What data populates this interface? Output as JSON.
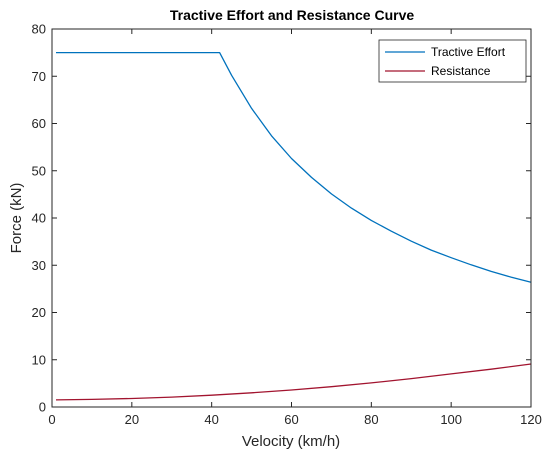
{
  "chart_data": {
    "type": "line",
    "title": "Tractive Effort and Resistance Curve",
    "xlabel": "Velocity (km/h)",
    "ylabel": "Force (kN)",
    "xlim": [
      0,
      120
    ],
    "ylim": [
      0,
      80
    ],
    "xticks": [
      0,
      20,
      40,
      60,
      80,
      100,
      120
    ],
    "yticks": [
      0,
      10,
      20,
      30,
      40,
      50,
      60,
      70,
      80
    ],
    "grid": false,
    "legend_position": "top-right",
    "series": [
      {
        "name": "Tractive Effort",
        "color": "#0072BD",
        "x": [
          1,
          10,
          20,
          30,
          40,
          42,
          45,
          50,
          55,
          60,
          65,
          70,
          75,
          80,
          85,
          90,
          95,
          100,
          105,
          110,
          115,
          120
        ],
        "y": [
          75,
          75,
          75,
          75,
          75,
          75,
          70.2,
          63.2,
          57.4,
          52.6,
          48.6,
          45.1,
          42.1,
          39.5,
          37.2,
          35.1,
          33.2,
          31.6,
          30.1,
          28.7,
          27.5,
          26.4
        ]
      },
      {
        "name": "Resistance",
        "color": "#A2142F",
        "x": [
          1,
          10,
          20,
          30,
          40,
          50,
          60,
          70,
          80,
          90,
          100,
          110,
          120
        ],
        "y": [
          1.5,
          1.6,
          1.8,
          2.1,
          2.5,
          3.0,
          3.6,
          4.3,
          5.1,
          6.0,
          7.0,
          8.0,
          9.1
        ]
      }
    ]
  }
}
